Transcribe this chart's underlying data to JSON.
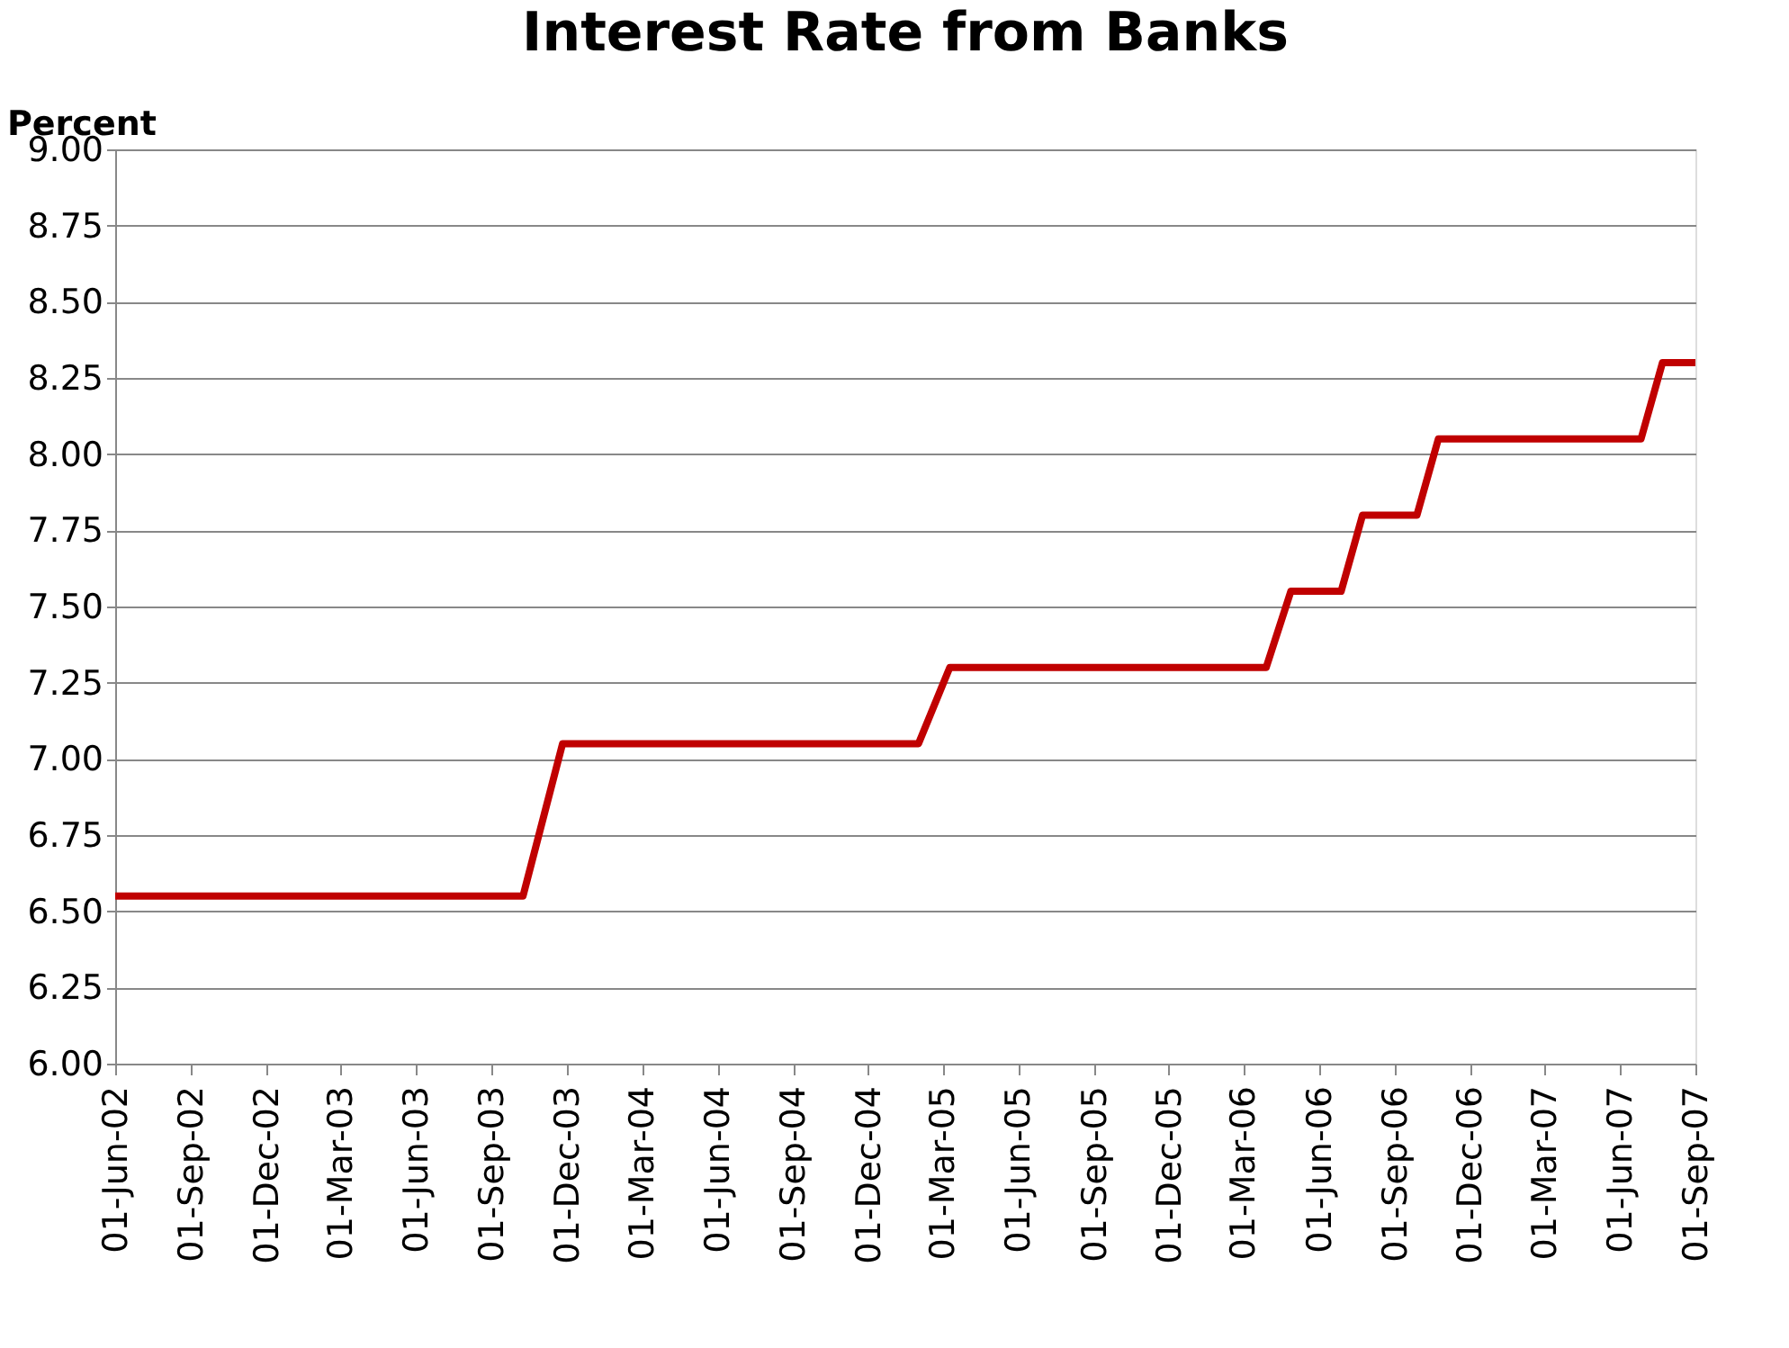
{
  "chart_data": {
    "type": "line",
    "title": "Interest Rate from Banks",
    "ylabel": "Percent",
    "x": [
      "2002-06-01",
      "2003-10-09",
      "2003-11-26",
      "2005-01-31",
      "2005-03-10",
      "2006-03-29",
      "2006-04-28",
      "2006-06-28",
      "2006-07-24",
      "2006-09-28",
      "2006-10-24",
      "2007-06-27",
      "2007-07-23",
      "2007-09-01"
    ],
    "series": [
      {
        "color": "#c00000",
        "values": [
          6.55,
          6.55,
          7.05,
          7.05,
          7.3,
          7.3,
          7.55,
          7.55,
          7.8,
          7.8,
          8.05,
          8.05,
          8.3,
          8.3
        ]
      }
    ],
    "xlim": [
      "2002-06-01",
      "2007-09-01"
    ],
    "xticks": [
      {
        "value": "2002-06-01",
        "label": "01-Jun-02"
      },
      {
        "value": "2002-09-01",
        "label": "01-Sep-02"
      },
      {
        "value": "2002-12-01",
        "label": "01-Dec-02"
      },
      {
        "value": "2003-03-01",
        "label": "01-Mar-03"
      },
      {
        "value": "2003-06-01",
        "label": "01-Jun-03"
      },
      {
        "value": "2003-09-01",
        "label": "01-Sep-03"
      },
      {
        "value": "2003-12-01",
        "label": "01-Dec-03"
      },
      {
        "value": "2004-03-01",
        "label": "01-Mar-04"
      },
      {
        "value": "2004-06-01",
        "label": "01-Jun-04"
      },
      {
        "value": "2004-09-01",
        "label": "01-Sep-04"
      },
      {
        "value": "2004-12-01",
        "label": "01-Dec-04"
      },
      {
        "value": "2005-03-01",
        "label": "01-Mar-05"
      },
      {
        "value": "2005-06-01",
        "label": "01-Jun-05"
      },
      {
        "value": "2005-09-01",
        "label": "01-Sep-05"
      },
      {
        "value": "2005-12-01",
        "label": "01-Dec-05"
      },
      {
        "value": "2006-03-01",
        "label": "01-Mar-06"
      },
      {
        "value": "2006-06-01",
        "label": "01-Jun-06"
      },
      {
        "value": "2006-09-01",
        "label": "01-Sep-06"
      },
      {
        "value": "2006-12-01",
        "label": "01-Dec-06"
      },
      {
        "value": "2007-03-01",
        "label": "01-Mar-07"
      },
      {
        "value": "2007-06-01",
        "label": "01-Jun-07"
      },
      {
        "value": "2007-09-01",
        "label": "01-Sep-07"
      }
    ],
    "ylim": [
      6.0,
      9.0
    ],
    "yticks": [
      {
        "value": 6.0,
        "label": "6.00"
      },
      {
        "value": 6.25,
        "label": "6.25"
      },
      {
        "value": 6.5,
        "label": "6.50"
      },
      {
        "value": 6.75,
        "label": "6.75"
      },
      {
        "value": 7.0,
        "label": "7.00"
      },
      {
        "value": 7.25,
        "label": "7.25"
      },
      {
        "value": 7.5,
        "label": "7.50"
      },
      {
        "value": 7.75,
        "label": "7.75"
      },
      {
        "value": 8.0,
        "label": "8.00"
      },
      {
        "value": 8.25,
        "label": "8.25"
      },
      {
        "value": 8.5,
        "label": "8.50"
      },
      {
        "value": 8.75,
        "label": "8.75"
      },
      {
        "value": 9.0,
        "label": "9.00"
      }
    ],
    "grid": "y",
    "marker": "none",
    "line_style": "solid"
  }
}
